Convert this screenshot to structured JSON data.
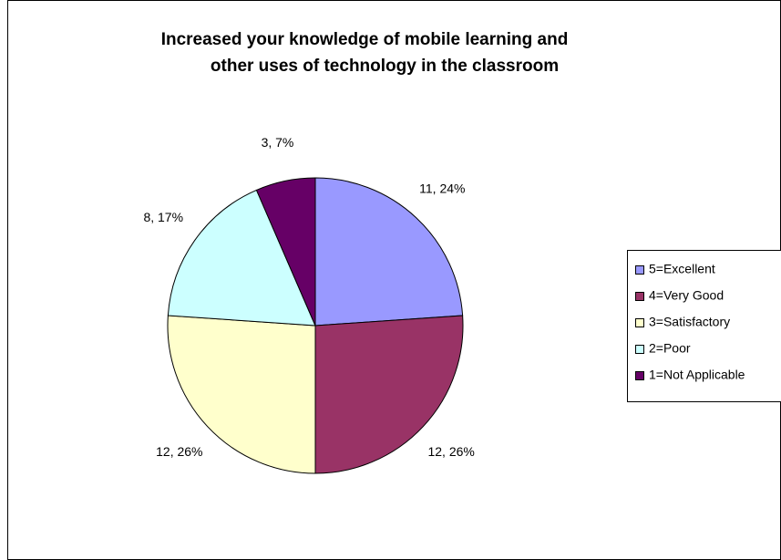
{
  "chart_data": {
    "type": "pie",
    "title": [
      "Increased your knowledge of mobile learning and",
      "other uses of technology in the classroom"
    ],
    "categories": [
      "5=Excellent",
      "4=Very Good",
      "3=Satisfactory",
      "2=Poor",
      "1=Not Applicable"
    ],
    "values": [
      11,
      12,
      12,
      8,
      3
    ],
    "value_labels": [
      "11, 24%",
      "12, 26%",
      "12, 26%",
      "8, 17%",
      "3, 7%"
    ],
    "colors": [
      "#9999ff",
      "#993366",
      "#ffffcc",
      "#ccffff",
      "#660066"
    ],
    "legend": "right"
  }
}
